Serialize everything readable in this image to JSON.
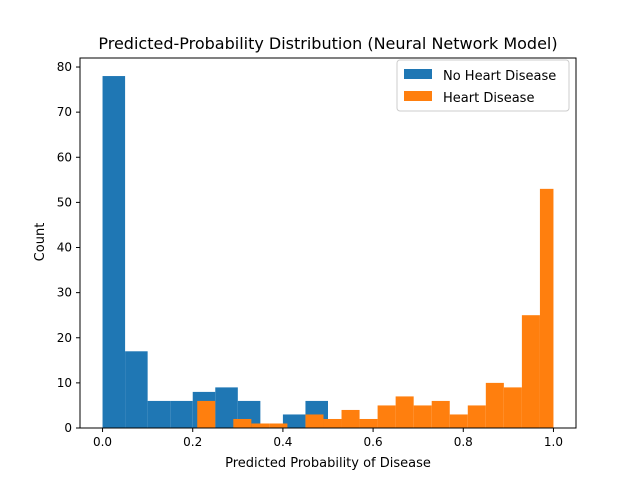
{
  "chart_data": {
    "type": "bar",
    "title": "Predicted-Probability Distribution (Neural Network Model)",
    "xlabel": "Predicted Probability of Disease",
    "ylabel": "Count",
    "xlim": [
      -0.05,
      1.05
    ],
    "ylim": [
      0,
      82
    ],
    "xticks": [
      0.0,
      0.2,
      0.4,
      0.6,
      0.8,
      1.0
    ],
    "xtick_labels": [
      "0.0",
      "0.2",
      "0.4",
      "0.6",
      "0.8",
      "1.0"
    ],
    "yticks": [
      0,
      10,
      20,
      30,
      40,
      50,
      60,
      70,
      80
    ],
    "ytick_labels": [
      "0",
      "10",
      "20",
      "30",
      "40",
      "50",
      "60",
      "70",
      "80"
    ],
    "grid": false,
    "legend": "top-right",
    "series": [
      {
        "name": "No Heart Disease",
        "color": "#1f77b4",
        "bins": [
          {
            "x0": 0.0,
            "x1": 0.05,
            "count": 78
          },
          {
            "x0": 0.05,
            "x1": 0.1,
            "count": 17
          },
          {
            "x0": 0.1,
            "x1": 0.15,
            "count": 6
          },
          {
            "x0": 0.15,
            "x1": 0.2,
            "count": 6
          },
          {
            "x0": 0.2,
            "x1": 0.25,
            "count": 8
          },
          {
            "x0": 0.25,
            "x1": 0.3,
            "count": 9
          },
          {
            "x0": 0.3,
            "x1": 0.35,
            "count": 6
          },
          {
            "x0": 0.35,
            "x1": 0.4,
            "count": 0
          },
          {
            "x0": 0.4,
            "x1": 0.45,
            "count": 3
          },
          {
            "x0": 0.45,
            "x1": 0.5,
            "count": 6
          }
        ]
      },
      {
        "name": "Heart Disease",
        "color": "#ff7f0e",
        "bins": [
          {
            "x0": 0.21,
            "x1": 0.25,
            "count": 6
          },
          {
            "x0": 0.25,
            "x1": 0.29,
            "count": 0
          },
          {
            "x0": 0.29,
            "x1": 0.33,
            "count": 2
          },
          {
            "x0": 0.33,
            "x1": 0.37,
            "count": 1
          },
          {
            "x0": 0.37,
            "x1": 0.41,
            "count": 1
          },
          {
            "x0": 0.41,
            "x1": 0.45,
            "count": 0
          },
          {
            "x0": 0.45,
            "x1": 0.49,
            "count": 3
          },
          {
            "x0": 0.49,
            "x1": 0.53,
            "count": 2
          },
          {
            "x0": 0.53,
            "x1": 0.57,
            "count": 4
          },
          {
            "x0": 0.57,
            "x1": 0.61,
            "count": 2
          },
          {
            "x0": 0.61,
            "x1": 0.65,
            "count": 5
          },
          {
            "x0": 0.65,
            "x1": 0.69,
            "count": 7
          },
          {
            "x0": 0.69,
            "x1": 0.73,
            "count": 5
          },
          {
            "x0": 0.73,
            "x1": 0.77,
            "count": 6
          },
          {
            "x0": 0.77,
            "x1": 0.81,
            "count": 3
          },
          {
            "x0": 0.81,
            "x1": 0.85,
            "count": 5
          },
          {
            "x0": 0.85,
            "x1": 0.89,
            "count": 10
          },
          {
            "x0": 0.89,
            "x1": 0.93,
            "count": 9
          },
          {
            "x0": 0.93,
            "x1": 0.97,
            "count": 25
          },
          {
            "x0": 0.97,
            "x1": 1.0,
            "count": 53
          }
        ]
      }
    ]
  }
}
